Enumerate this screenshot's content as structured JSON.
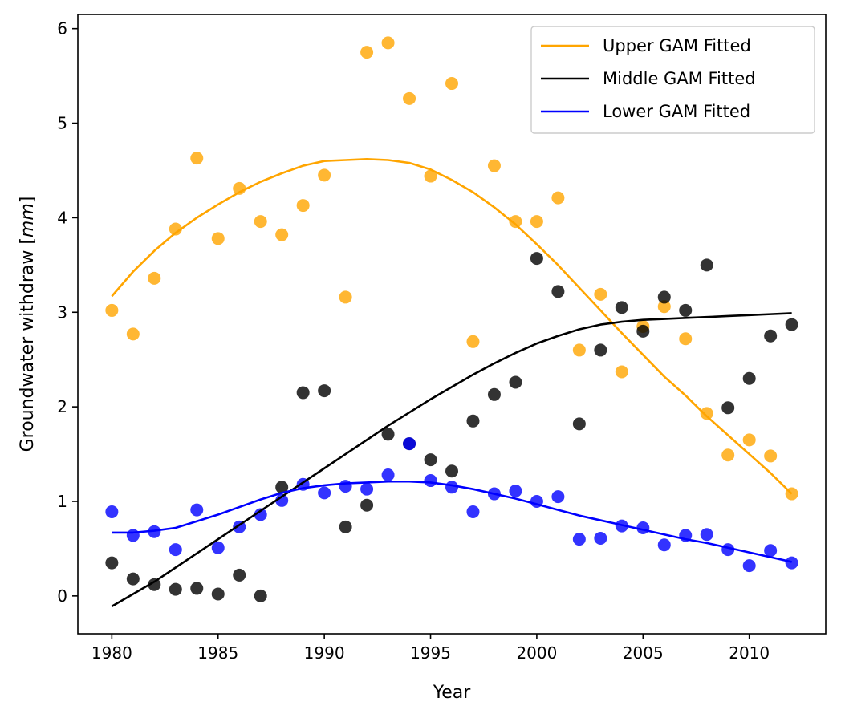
{
  "chart_data": {
    "type": "scatter",
    "title": "",
    "xlabel": "Year",
    "ylabel": "Groundwater withdraw [",
    "ylabel_unit": "mm",
    "ylabel_close": "]",
    "xlim": [
      1978.4,
      2013.6
    ],
    "ylim": [
      -0.4,
      6.15
    ],
    "xticks": [
      1980,
      1985,
      1990,
      1995,
      2000,
      2005,
      2010
    ],
    "yticks": [
      0,
      1,
      2,
      3,
      4,
      5,
      6
    ],
    "legend_position": "top-right",
    "x": [
      1980,
      1981,
      1982,
      1983,
      1984,
      1985,
      1986,
      1987,
      1988,
      1989,
      1990,
      1991,
      1992,
      1993,
      1994,
      1995,
      1996,
      1997,
      1998,
      1999,
      2000,
      2001,
      2002,
      2003,
      2004,
      2005,
      2006,
      2007,
      2008,
      2009,
      2010,
      2011,
      2012
    ],
    "fit_x": [
      1980,
      1981,
      1982,
      1983,
      1984,
      1985,
      1986,
      1987,
      1988,
      1989,
      1990,
      1991,
      1992,
      1993,
      1994,
      1995,
      1996,
      1997,
      1998,
      1999,
      2000,
      2001,
      2002,
      2003,
      2004,
      2005,
      2006,
      2007,
      2008,
      2009,
      2010,
      2011,
      2012
    ],
    "series": [
      {
        "name": "Upper",
        "legend_label": "Upper GAM Fitted",
        "color": "#FFA500",
        "points": [
          3.02,
          2.77,
          3.36,
          3.88,
          4.63,
          3.78,
          4.31,
          3.96,
          3.82,
          4.13,
          4.45,
          3.16,
          5.75,
          5.85,
          5.26,
          4.44,
          5.42,
          2.69,
          4.55,
          3.96,
          3.96,
          4.21,
          2.6,
          3.19,
          2.37,
          2.85,
          3.06,
          2.72,
          1.93,
          1.49,
          1.65,
          1.48,
          1.08
        ],
        "fit": [
          3.17,
          3.43,
          3.65,
          3.84,
          4.0,
          4.14,
          4.27,
          4.38,
          4.47,
          4.55,
          4.6,
          4.61,
          4.62,
          4.61,
          4.58,
          4.51,
          4.4,
          4.27,
          4.11,
          3.93,
          3.72,
          3.5,
          3.26,
          3.02,
          2.78,
          2.55,
          2.32,
          2.12,
          1.9,
          1.7,
          1.5,
          1.3,
          1.08
        ]
      },
      {
        "name": "Middle",
        "legend_label": "Middle GAM Fitted",
        "color": "#000000",
        "points": [
          0.35,
          0.18,
          0.12,
          0.07,
          0.08,
          0.02,
          0.22,
          0.0,
          1.15,
          2.15,
          2.17,
          0.73,
          0.96,
          1.71,
          1.61,
          1.44,
          1.32,
          1.85,
          2.13,
          2.26,
          3.57,
          3.22,
          1.82,
          2.6,
          3.05,
          2.8,
          3.16,
          3.02,
          3.5,
          1.99,
          2.3,
          2.75,
          2.87
        ],
        "fit": [
          -0.11,
          0.02,
          0.15,
          0.3,
          0.45,
          0.6,
          0.75,
          0.9,
          1.05,
          1.2,
          1.35,
          1.5,
          1.65,
          1.8,
          1.94,
          2.08,
          2.21,
          2.34,
          2.46,
          2.57,
          2.67,
          2.75,
          2.82,
          2.87,
          2.9,
          2.92,
          2.93,
          2.94,
          2.95,
          2.96,
          2.97,
          2.98,
          2.99
        ]
      },
      {
        "name": "Lower",
        "legend_label": "Lower GAM Fitted",
        "color": "#0000FF",
        "points": [
          0.89,
          0.64,
          0.68,
          0.49,
          0.91,
          0.51,
          0.73,
          0.86,
          1.01,
          1.18,
          1.09,
          1.16,
          1.13,
          1.28,
          1.61,
          1.22,
          1.15,
          0.89,
          1.08,
          1.11,
          1.0,
          1.05,
          0.6,
          0.61,
          0.74,
          0.72,
          0.54,
          0.64,
          0.65,
          0.49,
          0.32,
          0.48,
          0.35
        ],
        "fit": [
          0.67,
          0.67,
          0.69,
          0.72,
          0.79,
          0.86,
          0.94,
          1.02,
          1.09,
          1.14,
          1.17,
          1.19,
          1.2,
          1.21,
          1.21,
          1.2,
          1.17,
          1.13,
          1.08,
          1.03,
          0.97,
          0.91,
          0.85,
          0.8,
          0.75,
          0.7,
          0.65,
          0.6,
          0.56,
          0.51,
          0.46,
          0.41,
          0.36
        ]
      }
    ]
  }
}
